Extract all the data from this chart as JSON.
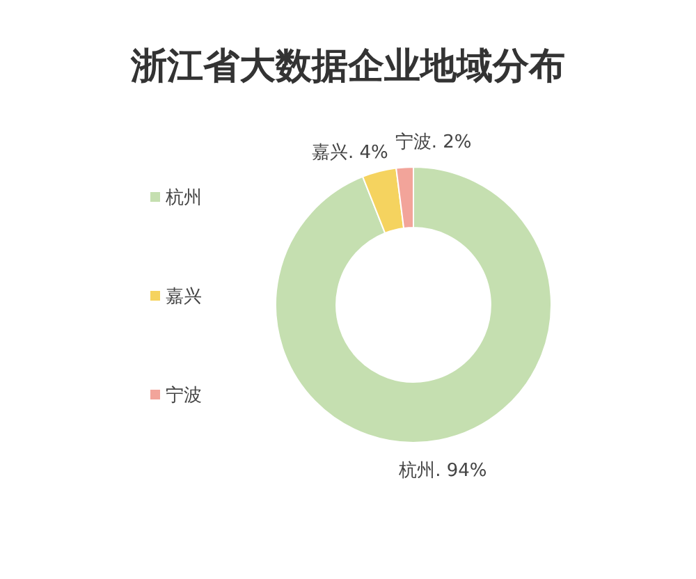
{
  "chart_data": {
    "type": "donut",
    "title": "浙江省大数据企业地域分布",
    "categories": [
      "杭州",
      "嘉兴",
      "宁波"
    ],
    "values": [
      94,
      4,
      2
    ],
    "colors": [
      "#c5dfb0",
      "#f5d35f",
      "#f2a49a"
    ],
    "value_labels": [
      "杭州. 94%",
      "嘉兴. 4%",
      "宁波. 2%"
    ],
    "legend": "left"
  }
}
